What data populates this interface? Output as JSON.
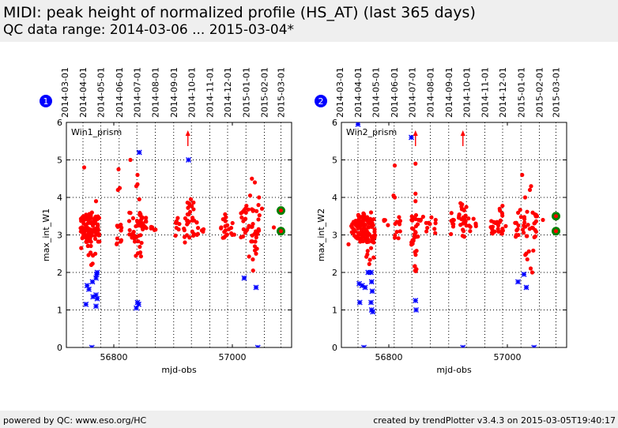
{
  "header": {
    "title": "MIDI: peak height of normalized profile (HS_AT) (last 365 days)",
    "subtitle": "QC data range: 2014-03-06 ... 2015-03-04*"
  },
  "footer": {
    "left": "powered by QC: www.eso.org/HC",
    "right": "created by trendPlotter v3.4.3 on 2015-03-05T19:40:17"
  },
  "chart_data": [
    {
      "type": "scatter",
      "badge": "1",
      "legend": "Win1_prism",
      "xlabel": "mjd-obs",
      "ylabel": "max_int_W1",
      "xlim": [
        56720,
        57100
      ],
      "ylim": [
        0,
        6
      ],
      "x_ticks": [
        56800,
        57000
      ],
      "y_ticks": [
        0,
        1,
        2,
        3,
        4,
        5,
        6
      ],
      "top_axis_dates": [
        {
          "label": "2014-03-01",
          "mjd": 56717
        },
        {
          "label": "2014-04-01",
          "mjd": 56748
        },
        {
          "label": "2014-05-01",
          "mjd": 56778
        },
        {
          "label": "2014-06-01",
          "mjd": 56809
        },
        {
          "label": "2014-07-01",
          "mjd": 56839
        },
        {
          "label": "2014-08-01",
          "mjd": 56870
        },
        {
          "label": "2014-09-01",
          "mjd": 56901
        },
        {
          "label": "2014-10-01",
          "mjd": 56931
        },
        {
          "label": "2014-11-01",
          "mjd": 56962
        },
        {
          "label": "2014-12-01",
          "mjd": 56992
        },
        {
          "label": "2015-01-01",
          "mjd": 57023
        },
        {
          "label": "2015-02-01",
          "mjd": 57054
        },
        {
          "label": "2015-03-01",
          "mjd": 57082
        }
      ],
      "arrows_mjd": [
        56925
      ],
      "clusters": [
        {
          "x0": 56743,
          "x1": 56752,
          "y0": 2.9,
          "y1": 3.5,
          "n": 30
        },
        {
          "x0": 56752,
          "x1": 56766,
          "y0": 2.7,
          "y1": 3.6,
          "n": 55
        },
        {
          "x0": 56766,
          "x1": 56776,
          "y0": 2.8,
          "y1": 3.5,
          "n": 30
        },
        {
          "x0": 56757,
          "x1": 56770,
          "y0": 2.2,
          "y1": 2.6,
          "n": 6
        },
        {
          "x0": 56803,
          "x1": 56815,
          "y0": 2.7,
          "y1": 3.3,
          "n": 12
        },
        {
          "x0": 56825,
          "x1": 56855,
          "y0": 2.9,
          "y1": 3.6,
          "n": 40
        },
        {
          "x0": 56835,
          "x1": 56850,
          "y0": 2.4,
          "y1": 2.9,
          "n": 8
        },
        {
          "x0": 56862,
          "x1": 56872,
          "y0": 3.1,
          "y1": 3.5,
          "n": 5
        },
        {
          "x0": 56904,
          "x1": 56912,
          "y0": 2.9,
          "y1": 3.5,
          "n": 8
        },
        {
          "x0": 56918,
          "x1": 56936,
          "y0": 2.9,
          "y1": 3.9,
          "n": 28
        },
        {
          "x0": 56938,
          "x1": 56952,
          "y0": 3.0,
          "y1": 3.4,
          "n": 8
        },
        {
          "x0": 56978,
          "x1": 56992,
          "y0": 2.9,
          "y1": 3.6,
          "n": 14
        },
        {
          "x0": 56994,
          "x1": 57005,
          "y0": 3.0,
          "y1": 3.4,
          "n": 6
        },
        {
          "x0": 57012,
          "x1": 57048,
          "y0": 2.8,
          "y1": 3.8,
          "n": 38
        },
        {
          "x0": 57028,
          "x1": 57048,
          "y0": 2.3,
          "y1": 2.7,
          "n": 5
        }
      ],
      "red_points": [
        {
          "x": 56750,
          "y": 4.8
        },
        {
          "x": 56745,
          "y": 2.65
        },
        {
          "x": 56770,
          "y": 3.9
        },
        {
          "x": 56762,
          "y": 2.2
        },
        {
          "x": 56808,
          "y": 4.75
        },
        {
          "x": 56807,
          "y": 4.2
        },
        {
          "x": 56810,
          "y": 4.25
        },
        {
          "x": 56828,
          "y": 5.0
        },
        {
          "x": 56840,
          "y": 4.6
        },
        {
          "x": 56838,
          "y": 4.3
        },
        {
          "x": 56840,
          "y": 4.35
        },
        {
          "x": 56843,
          "y": 3.95
        },
        {
          "x": 56920,
          "y": 2.8
        },
        {
          "x": 56930,
          "y": 3.95
        },
        {
          "x": 57033,
          "y": 4.5
        },
        {
          "x": 57038,
          "y": 4.4
        },
        {
          "x": 57030,
          "y": 4.05
        },
        {
          "x": 57045,
          "y": 4.0
        },
        {
          "x": 57050,
          "y": 3.7
        },
        {
          "x": 57035,
          "y": 2.05
        },
        {
          "x": 57040,
          "y": 2.5
        },
        {
          "x": 57070,
          "y": 3.2
        }
      ],
      "blue_points": [
        {
          "x": 56755,
          "y": 1.65
        },
        {
          "x": 56758,
          "y": 1.55
        },
        {
          "x": 56753,
          "y": 1.15
        },
        {
          "x": 56764,
          "y": 1.75
        },
        {
          "x": 56770,
          "y": 1.85
        },
        {
          "x": 56772,
          "y": 2.0
        },
        {
          "x": 56771,
          "y": 1.95
        },
        {
          "x": 56770,
          "y": 1.4
        },
        {
          "x": 56772,
          "y": 1.3
        },
        {
          "x": 56765,
          "y": 1.35
        },
        {
          "x": 56770,
          "y": 1.1
        },
        {
          "x": 56763,
          "y": 0.0
        },
        {
          "x": 56843,
          "y": 5.2
        },
        {
          "x": 56840,
          "y": 1.2
        },
        {
          "x": 56842,
          "y": 1.15
        },
        {
          "x": 56838,
          "y": 1.05
        },
        {
          "x": 56926,
          "y": 5.0
        },
        {
          "x": 57020,
          "y": 1.85
        },
        {
          "x": 57040,
          "y": 1.6
        },
        {
          "x": 57043,
          "y": 0.0
        }
      ],
      "green_points": [
        {
          "x": 57082,
          "y": 3.65
        },
        {
          "x": 57082,
          "y": 3.1
        }
      ]
    },
    {
      "type": "scatter",
      "badge": "2",
      "legend": "Win2_prism",
      "xlabel": "mjd-obs",
      "ylabel": "max_int_W2",
      "xlim": [
        56720,
        57100
      ],
      "ylim": [
        0,
        6
      ],
      "x_ticks": [
        56800,
        57000
      ],
      "y_ticks": [
        0,
        1,
        2,
        3,
        4,
        5,
        6
      ],
      "top_axis_dates": [
        {
          "label": "2014-03-01",
          "mjd": 56717
        },
        {
          "label": "2014-04-01",
          "mjd": 56748
        },
        {
          "label": "2014-05-01",
          "mjd": 56778
        },
        {
          "label": "2014-06-01",
          "mjd": 56809
        },
        {
          "label": "2014-07-01",
          "mjd": 56839
        },
        {
          "label": "2014-08-01",
          "mjd": 56870
        },
        {
          "label": "2014-09-01",
          "mjd": 56901
        },
        {
          "label": "2014-10-01",
          "mjd": 56931
        },
        {
          "label": "2014-11-01",
          "mjd": 56962
        },
        {
          "label": "2014-12-01",
          "mjd": 56992
        },
        {
          "label": "2015-01-01",
          "mjd": 57023
        },
        {
          "label": "2015-02-01",
          "mjd": 57054
        },
        {
          "label": "2015-03-01",
          "mjd": 57082
        }
      ],
      "arrows_mjd": [
        56845,
        56925
      ],
      "clusters": [
        {
          "x0": 56735,
          "x1": 56748,
          "y0": 2.9,
          "y1": 3.4,
          "n": 25
        },
        {
          "x0": 56748,
          "x1": 56765,
          "y0": 2.8,
          "y1": 3.6,
          "n": 60
        },
        {
          "x0": 56765,
          "x1": 56778,
          "y0": 2.8,
          "y1": 3.5,
          "n": 28
        },
        {
          "x0": 56760,
          "x1": 56775,
          "y0": 2.2,
          "y1": 2.7,
          "n": 8
        },
        {
          "x0": 56790,
          "x1": 56800,
          "y0": 3.2,
          "y1": 3.5,
          "n": 4
        },
        {
          "x0": 56808,
          "x1": 56820,
          "y0": 2.9,
          "y1": 3.5,
          "n": 10
        },
        {
          "x0": 56838,
          "x1": 56850,
          "y0": 2.7,
          "y1": 3.6,
          "n": 22
        },
        {
          "x0": 56840,
          "x1": 56847,
          "y0": 2.0,
          "y1": 2.6,
          "n": 8
        },
        {
          "x0": 56852,
          "x1": 56880,
          "y0": 3.0,
          "y1": 3.5,
          "n": 14
        },
        {
          "x0": 56904,
          "x1": 56912,
          "y0": 3.0,
          "y1": 3.6,
          "n": 8
        },
        {
          "x0": 56918,
          "x1": 56932,
          "y0": 2.9,
          "y1": 3.9,
          "n": 26
        },
        {
          "x0": 56934,
          "x1": 56948,
          "y0": 3.1,
          "y1": 3.5,
          "n": 8
        },
        {
          "x0": 56972,
          "x1": 57000,
          "y0": 3.0,
          "y1": 3.4,
          "n": 22
        },
        {
          "x0": 56985,
          "x1": 56992,
          "y0": 3.4,
          "y1": 3.8,
          "n": 5
        },
        {
          "x0": 57012,
          "x1": 57050,
          "y0": 2.9,
          "y1": 3.7,
          "n": 36
        },
        {
          "x0": 57030,
          "x1": 57045,
          "y0": 2.1,
          "y1": 2.7,
          "n": 6
        }
      ],
      "red_points": [
        {
          "x": 56732,
          "y": 2.75
        },
        {
          "x": 56810,
          "y": 4.85
        },
        {
          "x": 56810,
          "y": 4.0
        },
        {
          "x": 56808,
          "y": 4.05
        },
        {
          "x": 56770,
          "y": 3.6
        },
        {
          "x": 56845,
          "y": 4.9
        },
        {
          "x": 56845,
          "y": 3.9
        },
        {
          "x": 56845,
          "y": 4.1
        },
        {
          "x": 57025,
          "y": 4.6
        },
        {
          "x": 57040,
          "y": 4.3
        },
        {
          "x": 57038,
          "y": 4.2
        },
        {
          "x": 57030,
          "y": 4.0
        },
        {
          "x": 57042,
          "y": 2.0
        },
        {
          "x": 57050,
          "y": 3.5
        },
        {
          "x": 57060,
          "y": 3.4
        }
      ],
      "blue_points": [
        {
          "x": 56750,
          "y": 1.7
        },
        {
          "x": 56755,
          "y": 1.65
        },
        {
          "x": 56760,
          "y": 1.6
        },
        {
          "x": 56765,
          "y": 2.0
        },
        {
          "x": 56770,
          "y": 2.0
        },
        {
          "x": 56771,
          "y": 1.75
        },
        {
          "x": 56772,
          "y": 1.5
        },
        {
          "x": 56770,
          "y": 1.2
        },
        {
          "x": 56771,
          "y": 1.0
        },
        {
          "x": 56773,
          "y": 0.95
        },
        {
          "x": 56751,
          "y": 1.2
        },
        {
          "x": 56748,
          "y": 5.95
        },
        {
          "x": 56758,
          "y": 0.0
        },
        {
          "x": 56838,
          "y": 5.6
        },
        {
          "x": 56845,
          "y": 1.25
        },
        {
          "x": 56846,
          "y": 1.0
        },
        {
          "x": 56925,
          "y": 0.0
        },
        {
          "x": 57018,
          "y": 1.75
        },
        {
          "x": 57028,
          "y": 1.95
        },
        {
          "x": 57032,
          "y": 1.6
        },
        {
          "x": 57045,
          "y": 0.0
        }
      ],
      "green_points": [
        {
          "x": 57082,
          "y": 3.5
        },
        {
          "x": 57082,
          "y": 3.1
        }
      ]
    }
  ],
  "colors": {
    "red": "#ff0000",
    "blue": "#0000ff",
    "green": "#008000",
    "badge": "#0000ff",
    "header_bg": "#efefef"
  }
}
